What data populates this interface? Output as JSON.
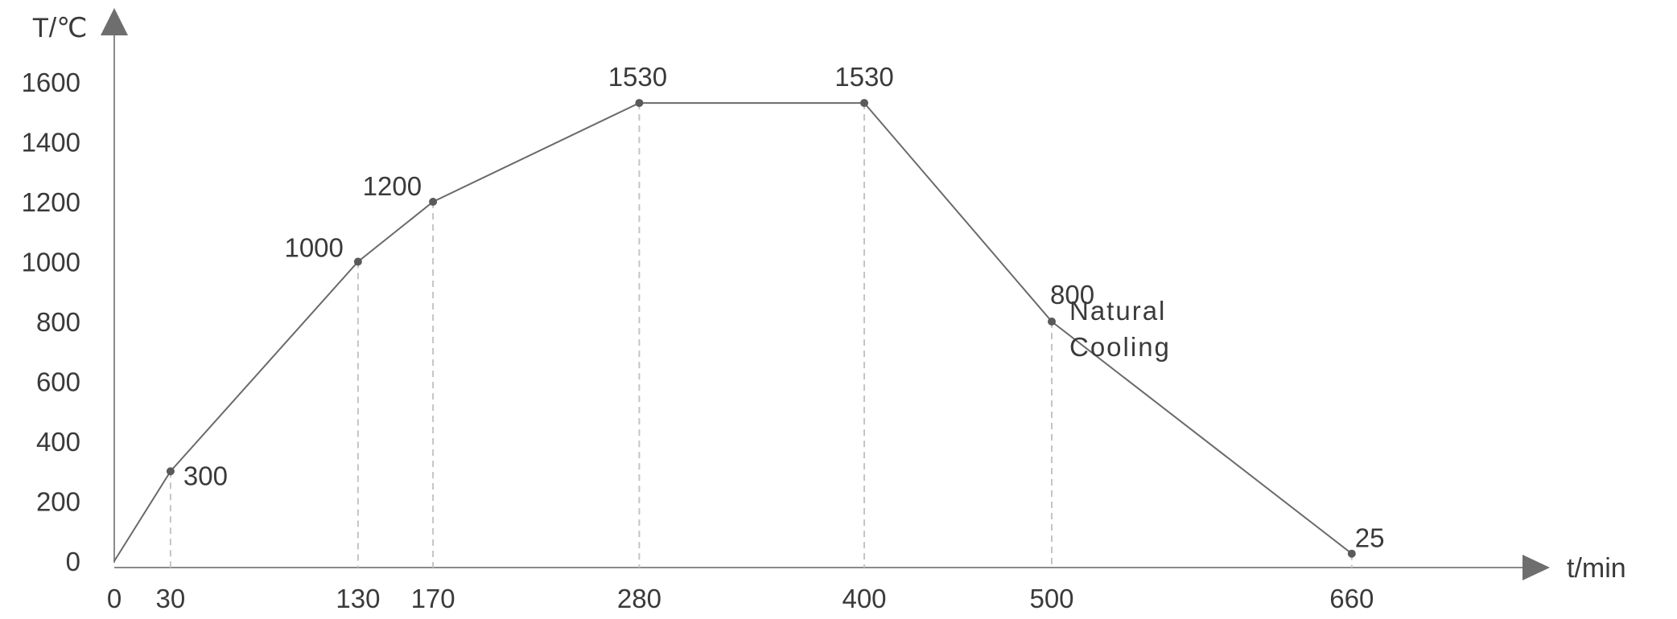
{
  "chart_data": {
    "type": "line",
    "xlabel": "t/min",
    "ylabel": "T/℃",
    "x_ticks": [
      "0",
      "30",
      "130",
      "170",
      "280",
      "400",
      "500",
      "660"
    ],
    "y_ticks": [
      "0",
      "200",
      "400",
      "600",
      "800",
      "1000",
      "1200",
      "1400",
      "1600"
    ],
    "xlim": [
      0,
      900
    ],
    "ylim": [
      0,
      1600
    ],
    "grid": false,
    "points": [
      {
        "x": 0,
        "y": 0,
        "label": ""
      },
      {
        "x": 30,
        "y": 300,
        "label": "300"
      },
      {
        "x": 130,
        "y": 1000,
        "label": "1000"
      },
      {
        "x": 170,
        "y": 1200,
        "label": "1200"
      },
      {
        "x": 280,
        "y": 1530,
        "label": "1530"
      },
      {
        "x": 400,
        "y": 1530,
        "label": "1530"
      },
      {
        "x": 500,
        "y": 800,
        "label": "800"
      },
      {
        "x": 660,
        "y": 25,
        "label": "25"
      }
    ],
    "annotations": [
      {
        "lines": [
          "Natural",
          "Cooling"
        ]
      }
    ]
  }
}
